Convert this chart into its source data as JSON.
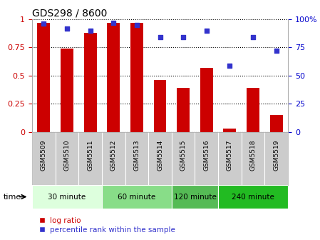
{
  "title": "GDS298 / 8600",
  "samples": [
    "GSM5509",
    "GSM5510",
    "GSM5511",
    "GSM5512",
    "GSM5513",
    "GSM5514",
    "GSM5515",
    "GSM5516",
    "GSM5517",
    "GSM5518",
    "GSM5519"
  ],
  "log_ratio": [
    0.97,
    0.74,
    0.88,
    0.97,
    0.97,
    0.46,
    0.39,
    0.57,
    0.03,
    0.39,
    0.15
  ],
  "percentile": [
    96,
    92,
    90,
    97,
    95,
    84,
    84,
    90,
    59,
    84,
    72
  ],
  "bar_color": "#cc0000",
  "dot_color": "#3333cc",
  "time_groups": [
    {
      "label": "30 minute",
      "start": 0,
      "end": 3,
      "color": "#ddffdd"
    },
    {
      "label": "60 minute",
      "start": 3,
      "end": 6,
      "color": "#99ee99"
    },
    {
      "label": "120 minute",
      "start": 6,
      "end": 8,
      "color": "#66cc66"
    },
    {
      "label": "240 minute",
      "start": 8,
      "end": 11,
      "color": "#33cc33"
    }
  ],
  "yticks_left": [
    0,
    0.25,
    0.5,
    0.75,
    1.0
  ],
  "ytick_labels_left": [
    "0",
    "0.25",
    "0.5",
    "0.75",
    "1"
  ],
  "yticks_right": [
    0,
    25,
    50,
    75,
    100
  ],
  "ytick_labels_right": [
    "0",
    "25",
    "50",
    "75",
    "100%"
  ],
  "ylim_left": [
    0,
    1.0
  ],
  "ylim_right": [
    0,
    100
  ],
  "bar_color_left": "#cc0000",
  "tick_label_color_left": "#cc0000",
  "tick_label_color_right": "#0000cc",
  "time_label": "time",
  "legend_log_ratio": "log ratio",
  "legend_percentile": "percentile rank within the sample",
  "tick_area_color": "#cccccc",
  "group_colors": [
    "#ddffdd",
    "#88dd88",
    "#55bb55",
    "#22bb22"
  ]
}
